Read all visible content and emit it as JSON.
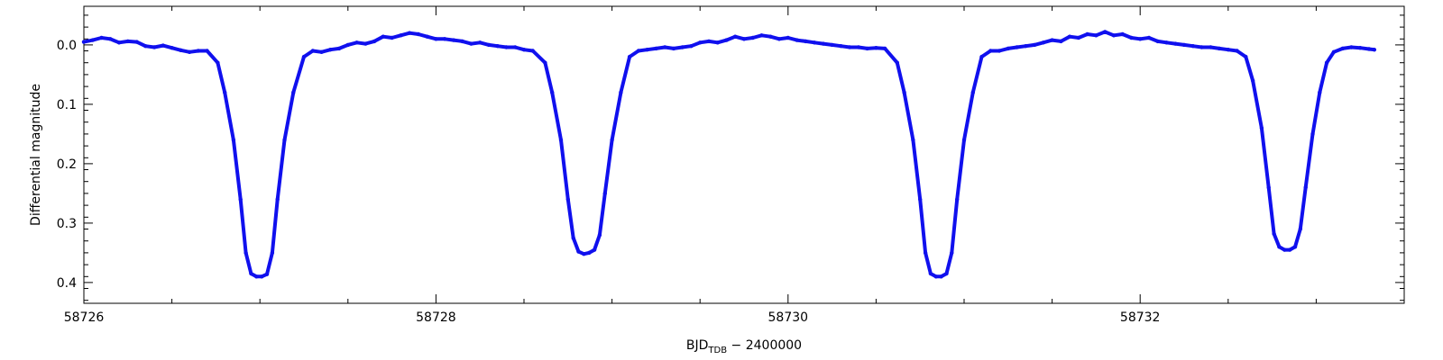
{
  "chart_data": {
    "type": "scatter",
    "title": "",
    "xlabel": "BJD",
    "xlabel_subscript": "TDB",
    "xlabel_suffix": " − 2400000",
    "ylabel": "Differential magnitude",
    "xlim": [
      58726.0,
      58733.5
    ],
    "ylim": [
      0.435,
      -0.065
    ],
    "y_inverted": true,
    "grid": false,
    "legend": "none",
    "x_ticks": [
      58726,
      58728,
      58730,
      58732
    ],
    "x_tick_labels": [
      "58726",
      "58728",
      "58730",
      "58732"
    ],
    "y_ticks": [
      0.0,
      0.1,
      0.2,
      0.3,
      0.4
    ],
    "y_tick_labels": [
      "0.0",
      "0.1",
      "0.2",
      "0.3",
      "0.4"
    ],
    "marker_color": "#1010ee",
    "series": [
      {
        "values_format": "[BJD_TDB - 2400000, differential magnitude]",
        "points": [
          [
            58726.0,
            -0.005
          ],
          [
            58726.05,
            -0.008
          ],
          [
            58726.1,
            -0.012
          ],
          [
            58726.15,
            -0.01
          ],
          [
            58726.2,
            -0.004
          ],
          [
            58726.25,
            -0.006
          ],
          [
            58726.3,
            -0.005
          ],
          [
            58726.35,
            0.002
          ],
          [
            58726.4,
            0.004
          ],
          [
            58726.45,
            0.001
          ],
          [
            58726.5,
            0.005
          ],
          [
            58726.55,
            0.009
          ],
          [
            58726.6,
            0.012
          ],
          [
            58726.65,
            0.01
          ],
          [
            58726.7,
            0.01
          ],
          [
            58726.76,
            0.03
          ],
          [
            58726.8,
            0.08
          ],
          [
            58726.85,
            0.16
          ],
          [
            58726.89,
            0.26
          ],
          [
            58726.92,
            0.35
          ],
          [
            58726.95,
            0.385
          ],
          [
            58726.98,
            0.39
          ],
          [
            58727.01,
            0.39
          ],
          [
            58727.04,
            0.386
          ],
          [
            58727.07,
            0.35
          ],
          [
            58727.1,
            0.26
          ],
          [
            58727.14,
            0.16
          ],
          [
            58727.19,
            0.08
          ],
          [
            58727.25,
            0.02
          ],
          [
            58727.3,
            0.01
          ],
          [
            58727.35,
            0.012
          ],
          [
            58727.4,
            0.008
          ],
          [
            58727.45,
            0.006
          ],
          [
            58727.5,
            0.0
          ],
          [
            58727.55,
            -0.004
          ],
          [
            58727.6,
            -0.002
          ],
          [
            58727.65,
            -0.006
          ],
          [
            58727.7,
            -0.014
          ],
          [
            58727.75,
            -0.012
          ],
          [
            58727.8,
            -0.016
          ],
          [
            58727.85,
            -0.02
          ],
          [
            58727.9,
            -0.018
          ],
          [
            58727.95,
            -0.014
          ],
          [
            58728.0,
            -0.01
          ],
          [
            58728.05,
            -0.01
          ],
          [
            58728.1,
            -0.008
          ],
          [
            58728.15,
            -0.006
          ],
          [
            58728.2,
            -0.002
          ],
          [
            58728.25,
            -0.004
          ],
          [
            58728.3,
            0.0
          ],
          [
            58728.35,
            0.002
          ],
          [
            58728.4,
            0.004
          ],
          [
            58728.45,
            0.004
          ],
          [
            58728.5,
            0.008
          ],
          [
            58728.55,
            0.01
          ],
          [
            58728.62,
            0.03
          ],
          [
            58728.66,
            0.08
          ],
          [
            58728.71,
            0.16
          ],
          [
            58728.75,
            0.26
          ],
          [
            58728.78,
            0.325
          ],
          [
            58728.81,
            0.348
          ],
          [
            58728.84,
            0.352
          ],
          [
            58728.87,
            0.35
          ],
          [
            58728.9,
            0.345
          ],
          [
            58728.93,
            0.32
          ],
          [
            58728.96,
            0.25
          ],
          [
            58729.0,
            0.16
          ],
          [
            58729.05,
            0.08
          ],
          [
            58729.1,
            0.02
          ],
          [
            58729.15,
            0.01
          ],
          [
            58729.2,
            0.008
          ],
          [
            58729.25,
            0.006
          ],
          [
            58729.3,
            0.004
          ],
          [
            58729.35,
            0.006
          ],
          [
            58729.4,
            0.004
          ],
          [
            58729.45,
            0.002
          ],
          [
            58729.5,
            -0.004
          ],
          [
            58729.55,
            -0.006
          ],
          [
            58729.6,
            -0.004
          ],
          [
            58729.65,
            -0.008
          ],
          [
            58729.7,
            -0.014
          ],
          [
            58729.75,
            -0.01
          ],
          [
            58729.8,
            -0.012
          ],
          [
            58729.85,
            -0.016
          ],
          [
            58729.9,
            -0.014
          ],
          [
            58729.95,
            -0.01
          ],
          [
            58730.0,
            -0.012
          ],
          [
            58730.05,
            -0.008
          ],
          [
            58730.1,
            -0.006
          ],
          [
            58730.15,
            -0.004
          ],
          [
            58730.2,
            -0.002
          ],
          [
            58730.25,
            0.0
          ],
          [
            58730.3,
            0.002
          ],
          [
            58730.35,
            0.004
          ],
          [
            58730.4,
            0.004
          ],
          [
            58730.45,
            0.006
          ],
          [
            58730.5,
            0.005
          ],
          [
            58730.55,
            0.006
          ],
          [
            58730.62,
            0.03
          ],
          [
            58730.66,
            0.08
          ],
          [
            58730.71,
            0.16
          ],
          [
            58730.75,
            0.26
          ],
          [
            58730.78,
            0.35
          ],
          [
            58730.81,
            0.385
          ],
          [
            58730.84,
            0.39
          ],
          [
            58730.87,
            0.39
          ],
          [
            58730.9,
            0.385
          ],
          [
            58730.93,
            0.35
          ],
          [
            58730.96,
            0.26
          ],
          [
            58731.0,
            0.16
          ],
          [
            58731.05,
            0.08
          ],
          [
            58731.1,
            0.02
          ],
          [
            58731.15,
            0.01
          ],
          [
            58731.2,
            0.01
          ],
          [
            58731.25,
            0.006
          ],
          [
            58731.3,
            0.004
          ],
          [
            58731.35,
            0.002
          ],
          [
            58731.4,
            0.0
          ],
          [
            58731.45,
            -0.004
          ],
          [
            58731.5,
            -0.008
          ],
          [
            58731.55,
            -0.006
          ],
          [
            58731.6,
            -0.014
          ],
          [
            58731.65,
            -0.012
          ],
          [
            58731.7,
            -0.018
          ],
          [
            58731.75,
            -0.016
          ],
          [
            58731.8,
            -0.022
          ],
          [
            58731.85,
            -0.016
          ],
          [
            58731.9,
            -0.018
          ],
          [
            58731.95,
            -0.012
          ],
          [
            58732.0,
            -0.01
          ],
          [
            58732.05,
            -0.012
          ],
          [
            58732.1,
            -0.006
          ],
          [
            58732.15,
            -0.004
          ],
          [
            58732.2,
            -0.002
          ],
          [
            58732.25,
            0.0
          ],
          [
            58732.3,
            0.002
          ],
          [
            58732.35,
            0.004
          ],
          [
            58732.4,
            0.004
          ],
          [
            58732.45,
            0.006
          ],
          [
            58732.5,
            0.008
          ],
          [
            58732.55,
            0.01
          ],
          [
            58732.6,
            0.02
          ],
          [
            58732.64,
            0.06
          ],
          [
            58732.69,
            0.14
          ],
          [
            58732.73,
            0.24
          ],
          [
            58732.76,
            0.318
          ],
          [
            58732.79,
            0.34
          ],
          [
            58732.82,
            0.345
          ],
          [
            58732.85,
            0.345
          ],
          [
            58732.88,
            0.34
          ],
          [
            58732.91,
            0.31
          ],
          [
            58732.94,
            0.24
          ],
          [
            58732.98,
            0.15
          ],
          [
            58733.02,
            0.08
          ],
          [
            58733.06,
            0.03
          ],
          [
            58733.1,
            0.012
          ],
          [
            58733.15,
            0.006
          ],
          [
            58733.2,
            0.004
          ],
          [
            58733.25,
            0.005
          ],
          [
            58733.3,
            0.007
          ],
          [
            58733.33,
            0.008
          ]
        ]
      }
    ]
  }
}
